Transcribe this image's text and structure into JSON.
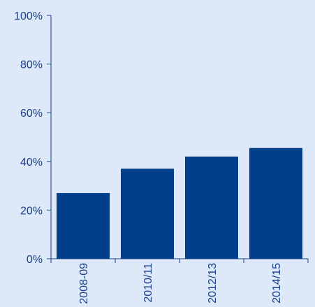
{
  "chart_data": {
    "type": "bar",
    "categories": [
      "2008-09",
      "2010/11",
      "2012/13",
      "2014/15"
    ],
    "values": [
      27,
      37,
      42,
      45.5
    ],
    "ylim": [
      0,
      100
    ],
    "yticks": [
      0,
      20,
      40,
      60,
      80,
      100
    ],
    "ytick_labels": [
      "0%",
      "20%",
      "40%",
      "60%",
      "80%",
      "100%"
    ],
    "title": "",
    "xlabel": "",
    "ylabel": "",
    "grid": false,
    "legend": "none",
    "colors": {
      "background": "#dde9f8",
      "bar": "#023f8a",
      "axis": "#1b3f8b",
      "text": "#1b3f8b"
    }
  }
}
